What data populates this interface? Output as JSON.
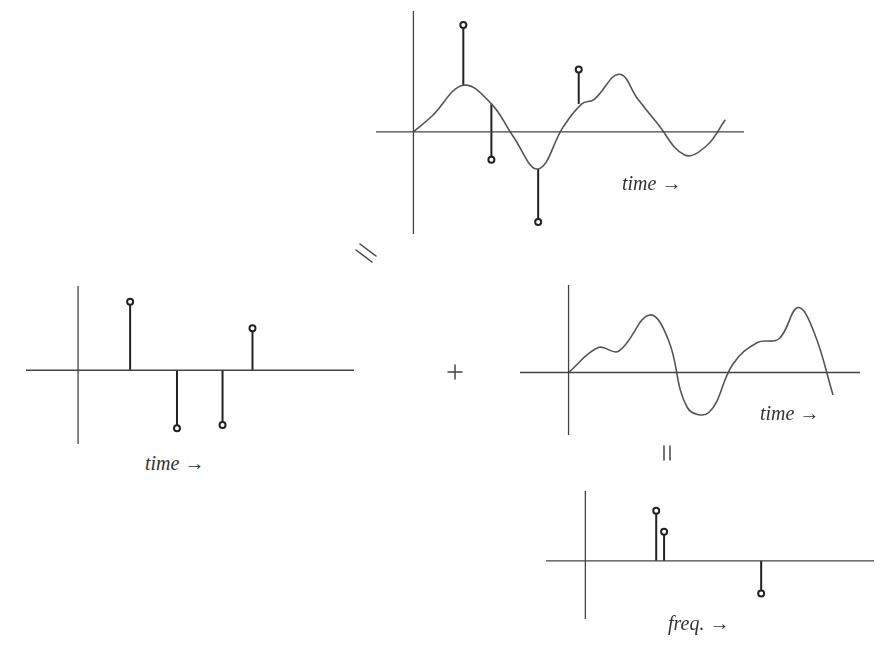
{
  "chart_data": [
    {
      "type": "line",
      "xlabel": "time →",
      "xlim": [
        -1.2,
        10.6
      ],
      "ylim": [
        -5.5,
        6.5
      ],
      "tick_labels": false,
      "grid": false,
      "series": [
        {
          "type": "line",
          "color": "#555555",
          "line_style": "solid",
          "x": [
            0,
            0.6,
            1.6,
            2.5,
            3.2,
            4.0,
            4.8,
            5.4,
            5.8,
            6.6,
            7.2,
            7.8,
            8.7,
            9.4,
            10.0
          ],
          "values": [
            0,
            0.85,
            2.5,
            1.5,
            -0.25,
            -2,
            0.25,
            1.5,
            1.75,
            3.1,
            1.75,
            0.5,
            -1.25,
            -0.75,
            0.65
          ]
        },
        {
          "type": "stem",
          "color": "#222222",
          "marker": "circle",
          "x": [
            1.6,
            2.5,
            4.0,
            5.3
          ],
          "base": [
            2.5,
            1.5,
            -2,
            1.5
          ],
          "values": [
            5.75,
            -1.5,
            -4.85,
            3.35
          ]
        }
      ]
    },
    {
      "type": "stem",
      "xlabel": "time →",
      "xlim": [
        -2,
        10.6
      ],
      "ylim": [
        -3.5,
        4
      ],
      "tick_labels": false,
      "grid": false,
      "series": [
        {
          "type": "stem",
          "color": "#222222",
          "marker": "circle",
          "x": [
            2.0,
            3.8,
            5.55,
            6.7
          ],
          "values": [
            3.25,
            -2.75,
            -2.6,
            2.0
          ]
        }
      ]
    },
    {
      "type": "line",
      "xlabel": "time →",
      "xlim": [
        -1.8,
        10.8
      ],
      "ylim": [
        -2.5,
        3.5
      ],
      "tick_labels": false,
      "grid": false,
      "series": [
        {
          "type": "line",
          "color": "#555555",
          "line_style": "solid",
          "x": [
            0,
            1.1,
            1.85,
            3.0,
            3.7,
            4.4,
            5.2,
            6.1,
            7.0,
            7.8,
            8.5,
            9.1,
            9.8
          ],
          "values": [
            0,
            1.0,
            0.85,
            2.3,
            1.3,
            -1.4,
            -1.6,
            0.35,
            1.2,
            1.35,
            2.6,
            1.6,
            -0.9
          ]
        }
      ]
    },
    {
      "type": "stem",
      "xlabel": "freq. →",
      "xlim": [
        -1.5,
        11
      ],
      "ylim": [
        -2.5,
        3
      ],
      "tick_labels": false,
      "grid": false,
      "series": [
        {
          "type": "stem",
          "color": "#222222",
          "marker": "circle",
          "x": [
            2.7,
            3.0,
            6.7
          ],
          "values": [
            2.15,
            1.25,
            -1.4
          ]
        }
      ]
    }
  ]
}
